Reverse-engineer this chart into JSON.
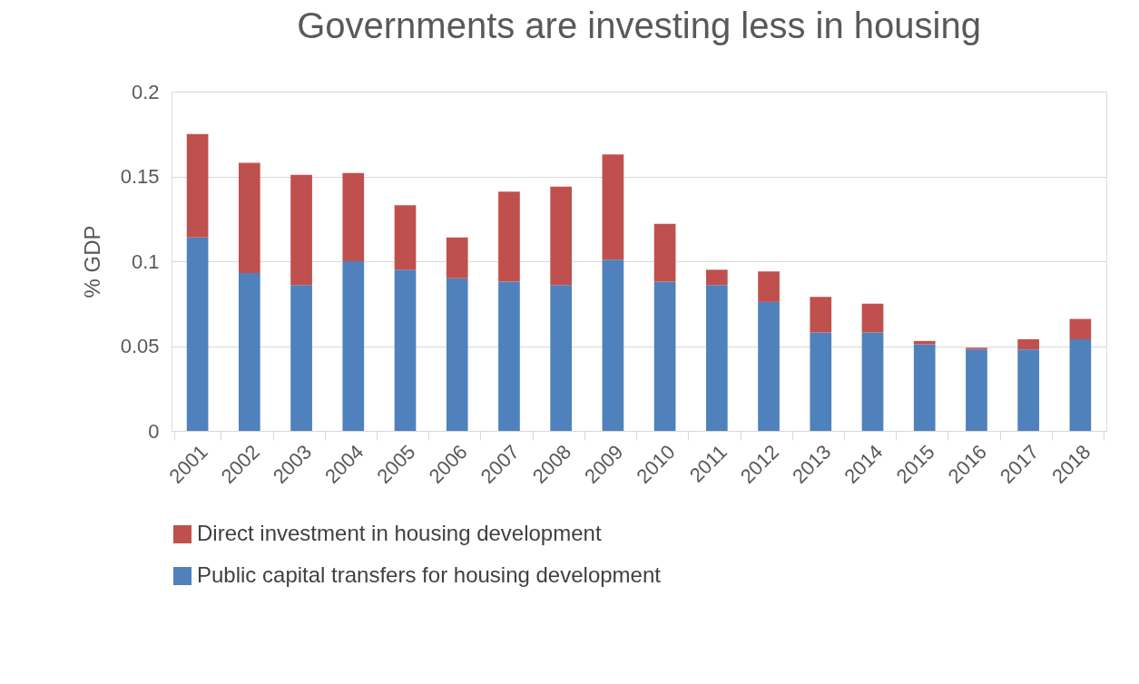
{
  "chart_data": {
    "type": "bar",
    "title": "Governments are investing less in housing",
    "ylabel": "% GDP",
    "categories": [
      "2001",
      "2002",
      "2003",
      "2004",
      "2005",
      "2006",
      "2007",
      "2008",
      "2009",
      "2010",
      "2011",
      "2012",
      "2013",
      "2014",
      "2015",
      "2016",
      "2017",
      "2018"
    ],
    "stacked": true,
    "series": [
      {
        "name": "Public capital transfers for housing development",
        "color": "#4f81bd",
        "values": [
          0.114,
          0.093,
          0.086,
          0.1,
          0.095,
          0.09,
          0.088,
          0.086,
          0.101,
          0.088,
          0.086,
          0.076,
          0.058,
          0.058,
          0.051,
          0.048,
          0.048,
          0.054
        ]
      },
      {
        "name": "Direct investment in housing development",
        "color": "#c0504d",
        "values": [
          0.061,
          0.065,
          0.065,
          0.052,
          0.038,
          0.024,
          0.053,
          0.058,
          0.062,
          0.034,
          0.009,
          0.018,
          0.021,
          0.017,
          0.002,
          0.001,
          0.006,
          0.012
        ]
      }
    ],
    "ylim": [
      0,
      0.2
    ],
    "yticks": [
      0,
      0.05,
      0.1,
      0.15,
      0.2
    ],
    "grid": "y",
    "legend": "bottom"
  }
}
